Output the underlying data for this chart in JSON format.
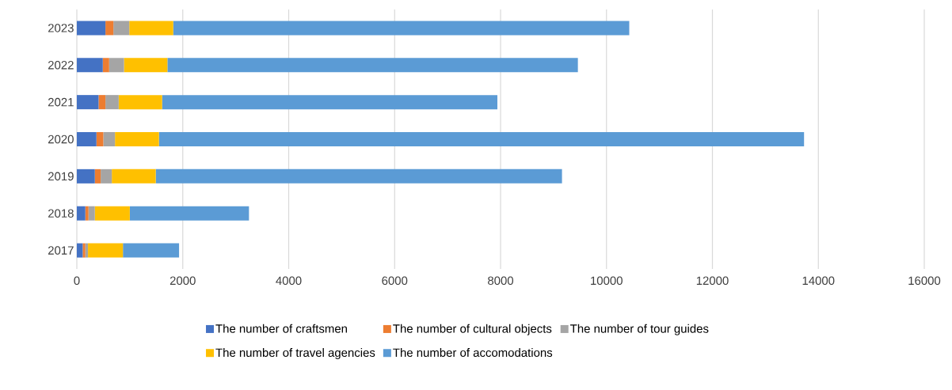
{
  "chart_data": {
    "type": "bar",
    "orientation": "horizontal",
    "stacked": true,
    "categories": [
      "2023",
      "2022",
      "2021",
      "2020",
      "2019",
      "2018",
      "2017"
    ],
    "series": [
      {
        "name": "The number of craftsmen",
        "color": "#4472c4",
        "values": [
          540,
          490,
          410,
          370,
          340,
          160,
          110
        ]
      },
      {
        "name": "The number of cultural objects",
        "color": "#ed7d31",
        "values": [
          150,
          120,
          130,
          130,
          110,
          60,
          50
        ]
      },
      {
        "name": "The number of tour guides",
        "color": "#a5a5a5",
        "values": [
          300,
          280,
          250,
          220,
          210,
          120,
          50
        ]
      },
      {
        "name": "The number of travel agencies",
        "color": "#ffc000",
        "values": [
          830,
          820,
          820,
          830,
          830,
          660,
          660
        ]
      },
      {
        "name": "The number of accomodations",
        "color": "#5b9bd5",
        "values": [
          8610,
          7750,
          6330,
          12180,
          7670,
          2250,
          1060
        ]
      }
    ],
    "xlim": [
      0,
      16000
    ],
    "xticks": [
      0,
      2000,
      4000,
      6000,
      8000,
      10000,
      12000,
      14000,
      16000
    ],
    "grid": "x",
    "legend": "bottom"
  }
}
